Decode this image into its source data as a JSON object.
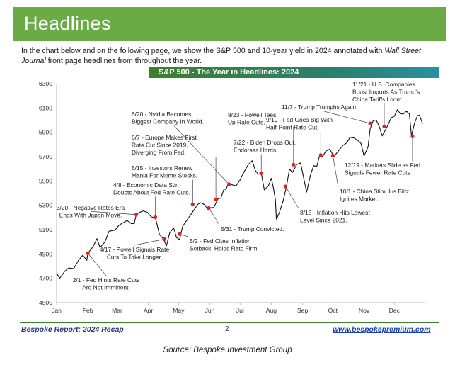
{
  "header": {
    "title": "Headlines"
  },
  "intro": {
    "text_before": "In the chart below and on the following page, we show the S&P 500 and 10-year yield in 2024 annotated with ",
    "publication": "Wall Street Journal",
    "text_after": " front page headlines from throughout the year."
  },
  "footer": {
    "report": "Bespoke Report: 2024 Recap",
    "page": "2",
    "url": "www.bespokepremium.com"
  },
  "source": "Source: Bespoke Investment Group",
  "colors": {
    "header_green": "#6aab45",
    "title_bar": "#3d7f2c",
    "line": "#111111",
    "marker": "#e02020",
    "link": "#1a3fb0"
  },
  "chart_data": {
    "type": "line",
    "title": "S&P 500 - The Year in Headlines: 2024",
    "xlabel": "",
    "ylabel": "",
    "ylim": [
      4500,
      6300
    ],
    "yticks": [
      4500,
      4700,
      4900,
      5100,
      5300,
      5500,
      5700,
      5900,
      6100,
      6300
    ],
    "xticks": [
      "Jan",
      "Feb",
      "Mar",
      "Apr",
      "May",
      "Jun",
      "Jul",
      "Aug",
      "Sep",
      "Oct",
      "Nov",
      "Dec"
    ],
    "grid": false,
    "series": [
      {
        "values": [
          {
            "d": 0,
            "v": 4743
          },
          {
            "d": 3,
            "v": 4700
          },
          {
            "d": 8,
            "v": 4757
          },
          {
            "d": 12,
            "v": 4784
          },
          {
            "d": 17,
            "v": 4780
          },
          {
            "d": 22,
            "v": 4850
          },
          {
            "d": 26,
            "v": 4890
          },
          {
            "d": 30,
            "v": 4848
          },
          {
            "d": 31,
            "v": 4906
          },
          {
            "d": 36,
            "v": 4958
          },
          {
            "d": 40,
            "v": 5026
          },
          {
            "d": 43,
            "v": 4953
          },
          {
            "d": 48,
            "v": 5000
          },
          {
            "d": 52,
            "v": 5087
          },
          {
            "d": 58,
            "v": 5096
          },
          {
            "d": 62,
            "v": 5137
          },
          {
            "d": 66,
            "v": 5157
          },
          {
            "d": 70,
            "v": 5175
          },
          {
            "d": 74,
            "v": 5150
          },
          {
            "d": 77,
            "v": 5149
          },
          {
            "d": 79,
            "v": 5224
          },
          {
            "d": 82,
            "v": 5241
          },
          {
            "d": 86,
            "v": 5254
          },
          {
            "d": 90,
            "v": 5243
          },
          {
            "d": 94,
            "v": 5204
          },
          {
            "d": 98,
            "v": 5199
          },
          {
            "d": 102,
            "v": 5061
          },
          {
            "d": 106,
            "v": 5022
          },
          {
            "d": 109,
            "v": 4967
          },
          {
            "d": 112,
            "v": 5070
          },
          {
            "d": 116,
            "v": 5116
          },
          {
            "d": 119,
            "v": 5035
          },
          {
            "d": 122,
            "v": 5018
          },
          {
            "d": 125,
            "v": 5128
          },
          {
            "d": 130,
            "v": 5187
          },
          {
            "d": 135,
            "v": 5246
          },
          {
            "d": 140,
            "v": 5308
          },
          {
            "d": 143,
            "v": 5321
          },
          {
            "d": 147,
            "v": 5304
          },
          {
            "d": 150,
            "v": 5266
          },
          {
            "d": 152,
            "v": 5278
          },
          {
            "d": 156,
            "v": 5283
          },
          {
            "d": 160,
            "v": 5352
          },
          {
            "d": 163,
            "v": 5360
          },
          {
            "d": 166,
            "v": 5433
          },
          {
            "d": 168,
            "v": 5431
          },
          {
            "d": 171,
            "v": 5487
          },
          {
            "d": 174,
            "v": 5469
          },
          {
            "d": 178,
            "v": 5460
          },
          {
            "d": 182,
            "v": 5509
          },
          {
            "d": 186,
            "v": 5576
          },
          {
            "d": 190,
            "v": 5633
          },
          {
            "d": 194,
            "v": 5667
          },
          {
            "d": 197,
            "v": 5588
          },
          {
            "d": 200,
            "v": 5555
          },
          {
            "d": 203,
            "v": 5564
          },
          {
            "d": 206,
            "v": 5427
          },
          {
            "d": 210,
            "v": 5459
          },
          {
            "d": 213,
            "v": 5522
          },
          {
            "d": 215,
            "v": 5446
          },
          {
            "d": 217,
            "v": 5346
          },
          {
            "d": 218,
            "v": 5186
          },
          {
            "d": 221,
            "v": 5240
          },
          {
            "d": 225,
            "v": 5344
          },
          {
            "d": 228,
            "v": 5455
          },
          {
            "d": 231,
            "v": 5597
          },
          {
            "d": 234,
            "v": 5570
          },
          {
            "d": 238,
            "v": 5634
          },
          {
            "d": 242,
            "v": 5648
          },
          {
            "d": 245,
            "v": 5528
          },
          {
            "d": 248,
            "v": 5408
          },
          {
            "d": 252,
            "v": 5554
          },
          {
            "d": 255,
            "v": 5626
          },
          {
            "d": 258,
            "v": 5618
          },
          {
            "d": 261,
            "v": 5713
          },
          {
            "d": 264,
            "v": 5702
          },
          {
            "d": 267,
            "v": 5745
          },
          {
            "d": 271,
            "v": 5762
          },
          {
            "d": 275,
            "v": 5700
          },
          {
            "d": 280,
            "v": 5751
          },
          {
            "d": 284,
            "v": 5792
          },
          {
            "d": 288,
            "v": 5815
          },
          {
            "d": 291,
            "v": 5859
          },
          {
            "d": 295,
            "v": 5853
          },
          {
            "d": 299,
            "v": 5832
          },
          {
            "d": 302,
            "v": 5808
          },
          {
            "d": 305,
            "v": 5705
          },
          {
            "d": 309,
            "v": 5782
          },
          {
            "d": 311,
            "v": 5929
          },
          {
            "d": 314,
            "v": 5995
          },
          {
            "d": 317,
            "v": 6001
          },
          {
            "d": 320,
            "v": 5949
          },
          {
            "d": 323,
            "v": 5870
          },
          {
            "d": 326,
            "v": 5917
          },
          {
            "d": 328,
            "v": 5948
          },
          {
            "d": 332,
            "v": 6021
          },
          {
            "d": 335,
            "v": 6032
          },
          {
            "d": 338,
            "v": 6086
          },
          {
            "d": 341,
            "v": 6052
          },
          {
            "d": 344,
            "v": 6051
          },
          {
            "d": 347,
            "v": 6074
          },
          {
            "d": 350,
            "v": 6050
          },
          {
            "d": 352,
            "v": 5872
          },
          {
            "d": 355,
            "v": 5975
          },
          {
            "d": 358,
            "v": 6037
          },
          {
            "d": 360,
            "v": 6040
          },
          {
            "d": 363,
            "v": 5970
          }
        ]
      }
    ],
    "annotations": [
      {
        "lines": [
          "2/1 - Fed Hints Rate Cuts",
          "Are Not Imminent."
        ],
        "d": 31,
        "v": 4906
      },
      {
        "lines": [
          "3/20 - Negative Rates Era",
          "Ends With Japan Move."
        ],
        "d": 79,
        "v": 5224
      },
      {
        "lines": [
          "4/8 - Economic Data Stir",
          "Doubts About Fed Rate Cuts."
        ],
        "d": 98,
        "v": 5202
      },
      {
        "lines": [
          "4/17 - Powell Signals Rate",
          "Cuts To Take Longer."
        ],
        "d": 107,
        "v": 5022
      },
      {
        "lines": [
          "5/2 - Fed Cites Inflation",
          "Setback, Holds Rate Firm."
        ],
        "d": 122,
        "v": 5064
      },
      {
        "lines": [
          "5/15 - Investors Renew",
          "Mania For Meme Stocks."
        ],
        "d": 135,
        "v": 5308
      },
      {
        "lines": [
          "5/31 - Trump Convicted."
        ],
        "d": 151,
        "v": 5278
      },
      {
        "lines": [
          "6/7 - Europe Makes First",
          "Rate Cut Since 2019,",
          "Diverging From Fed."
        ],
        "d": 158,
        "v": 5347
      },
      {
        "lines": [
          "6/20 - Nvidia Becomes",
          "Biggest Company In World."
        ],
        "d": 171,
        "v": 5473
      },
      {
        "lines": [
          "7/22 - Biden Drops Out,",
          "Endorses Harris."
        ],
        "d": 203,
        "v": 5564
      },
      {
        "lines": [
          "8/23 - Powell Tees",
          "Up Rate Cuts."
        ],
        "d": 235,
        "v": 5634
      },
      {
        "lines": [
          "8/15 - Inflation Hits Lowest",
          "Level Since 2021."
        ],
        "d": 227,
        "v": 5455
      },
      {
        "lines": [
          "9/19 - Fed Goes Big With",
          "Half-Point Rate Cut."
        ],
        "d": 262,
        "v": 5713
      },
      {
        "lines": [
          "10/1 - China Stimulus Blitz",
          "Ignites Market."
        ],
        "d": 274,
        "v": 5709
      },
      {
        "lines": [
          "11/7 - Trump Trumphs Again."
        ],
        "d": 311,
        "v": 5973
      },
      {
        "lines": [
          "11/21 - U.S. Companies",
          "Boost Imports As Trump's",
          "China Tariffs Loom."
        ],
        "d": 325,
        "v": 5948
      },
      {
        "lines": [
          "12/19 - Markets Slide as Fed",
          "Signals Fewer Rate Cuts"
        ],
        "d": 353,
        "v": 5867
      }
    ]
  }
}
